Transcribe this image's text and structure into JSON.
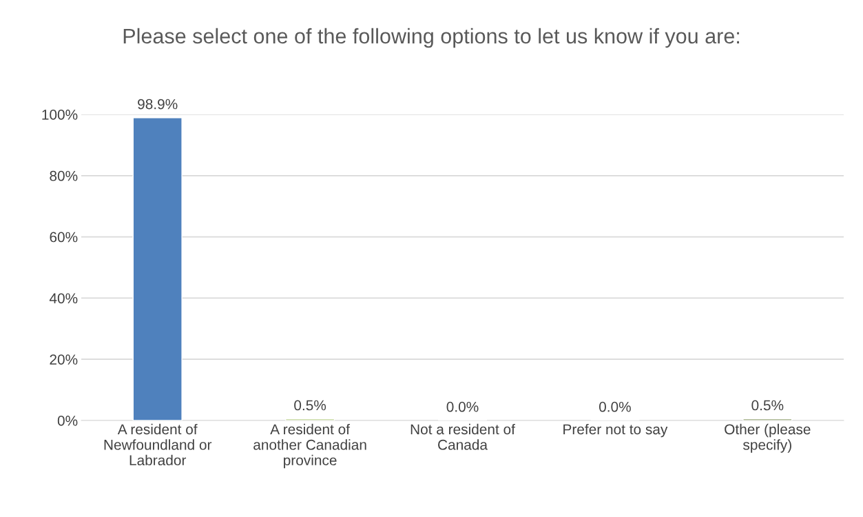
{
  "chart_data": {
    "type": "bar",
    "title": "Please select one of the following options to let us know if you are:",
    "categories": [
      "A resident of Newfoundland or Labrador",
      "A resident of another Canadian province",
      "Not a resident of Canada",
      "Prefer not to say",
      "Other (please specify)"
    ],
    "values": [
      98.9,
      0.5,
      0.0,
      0.0,
      0.5
    ],
    "value_labels": [
      "98.9%",
      "0.5%",
      "0.0%",
      "0.0%",
      "0.5%"
    ],
    "colors": [
      "#4f81bd",
      "#9bbb59",
      null,
      null,
      "#5f7530"
    ],
    "ylim": [
      0,
      100
    ],
    "yticks": [
      {
        "value": 0,
        "label": "0%"
      },
      {
        "value": 20,
        "label": "20%"
      },
      {
        "value": 40,
        "label": "40%"
      },
      {
        "value": 60,
        "label": "60%"
      },
      {
        "value": 80,
        "label": "80%"
      },
      {
        "value": 100,
        "label": "100%"
      }
    ],
    "grid": "y",
    "legend": false
  }
}
